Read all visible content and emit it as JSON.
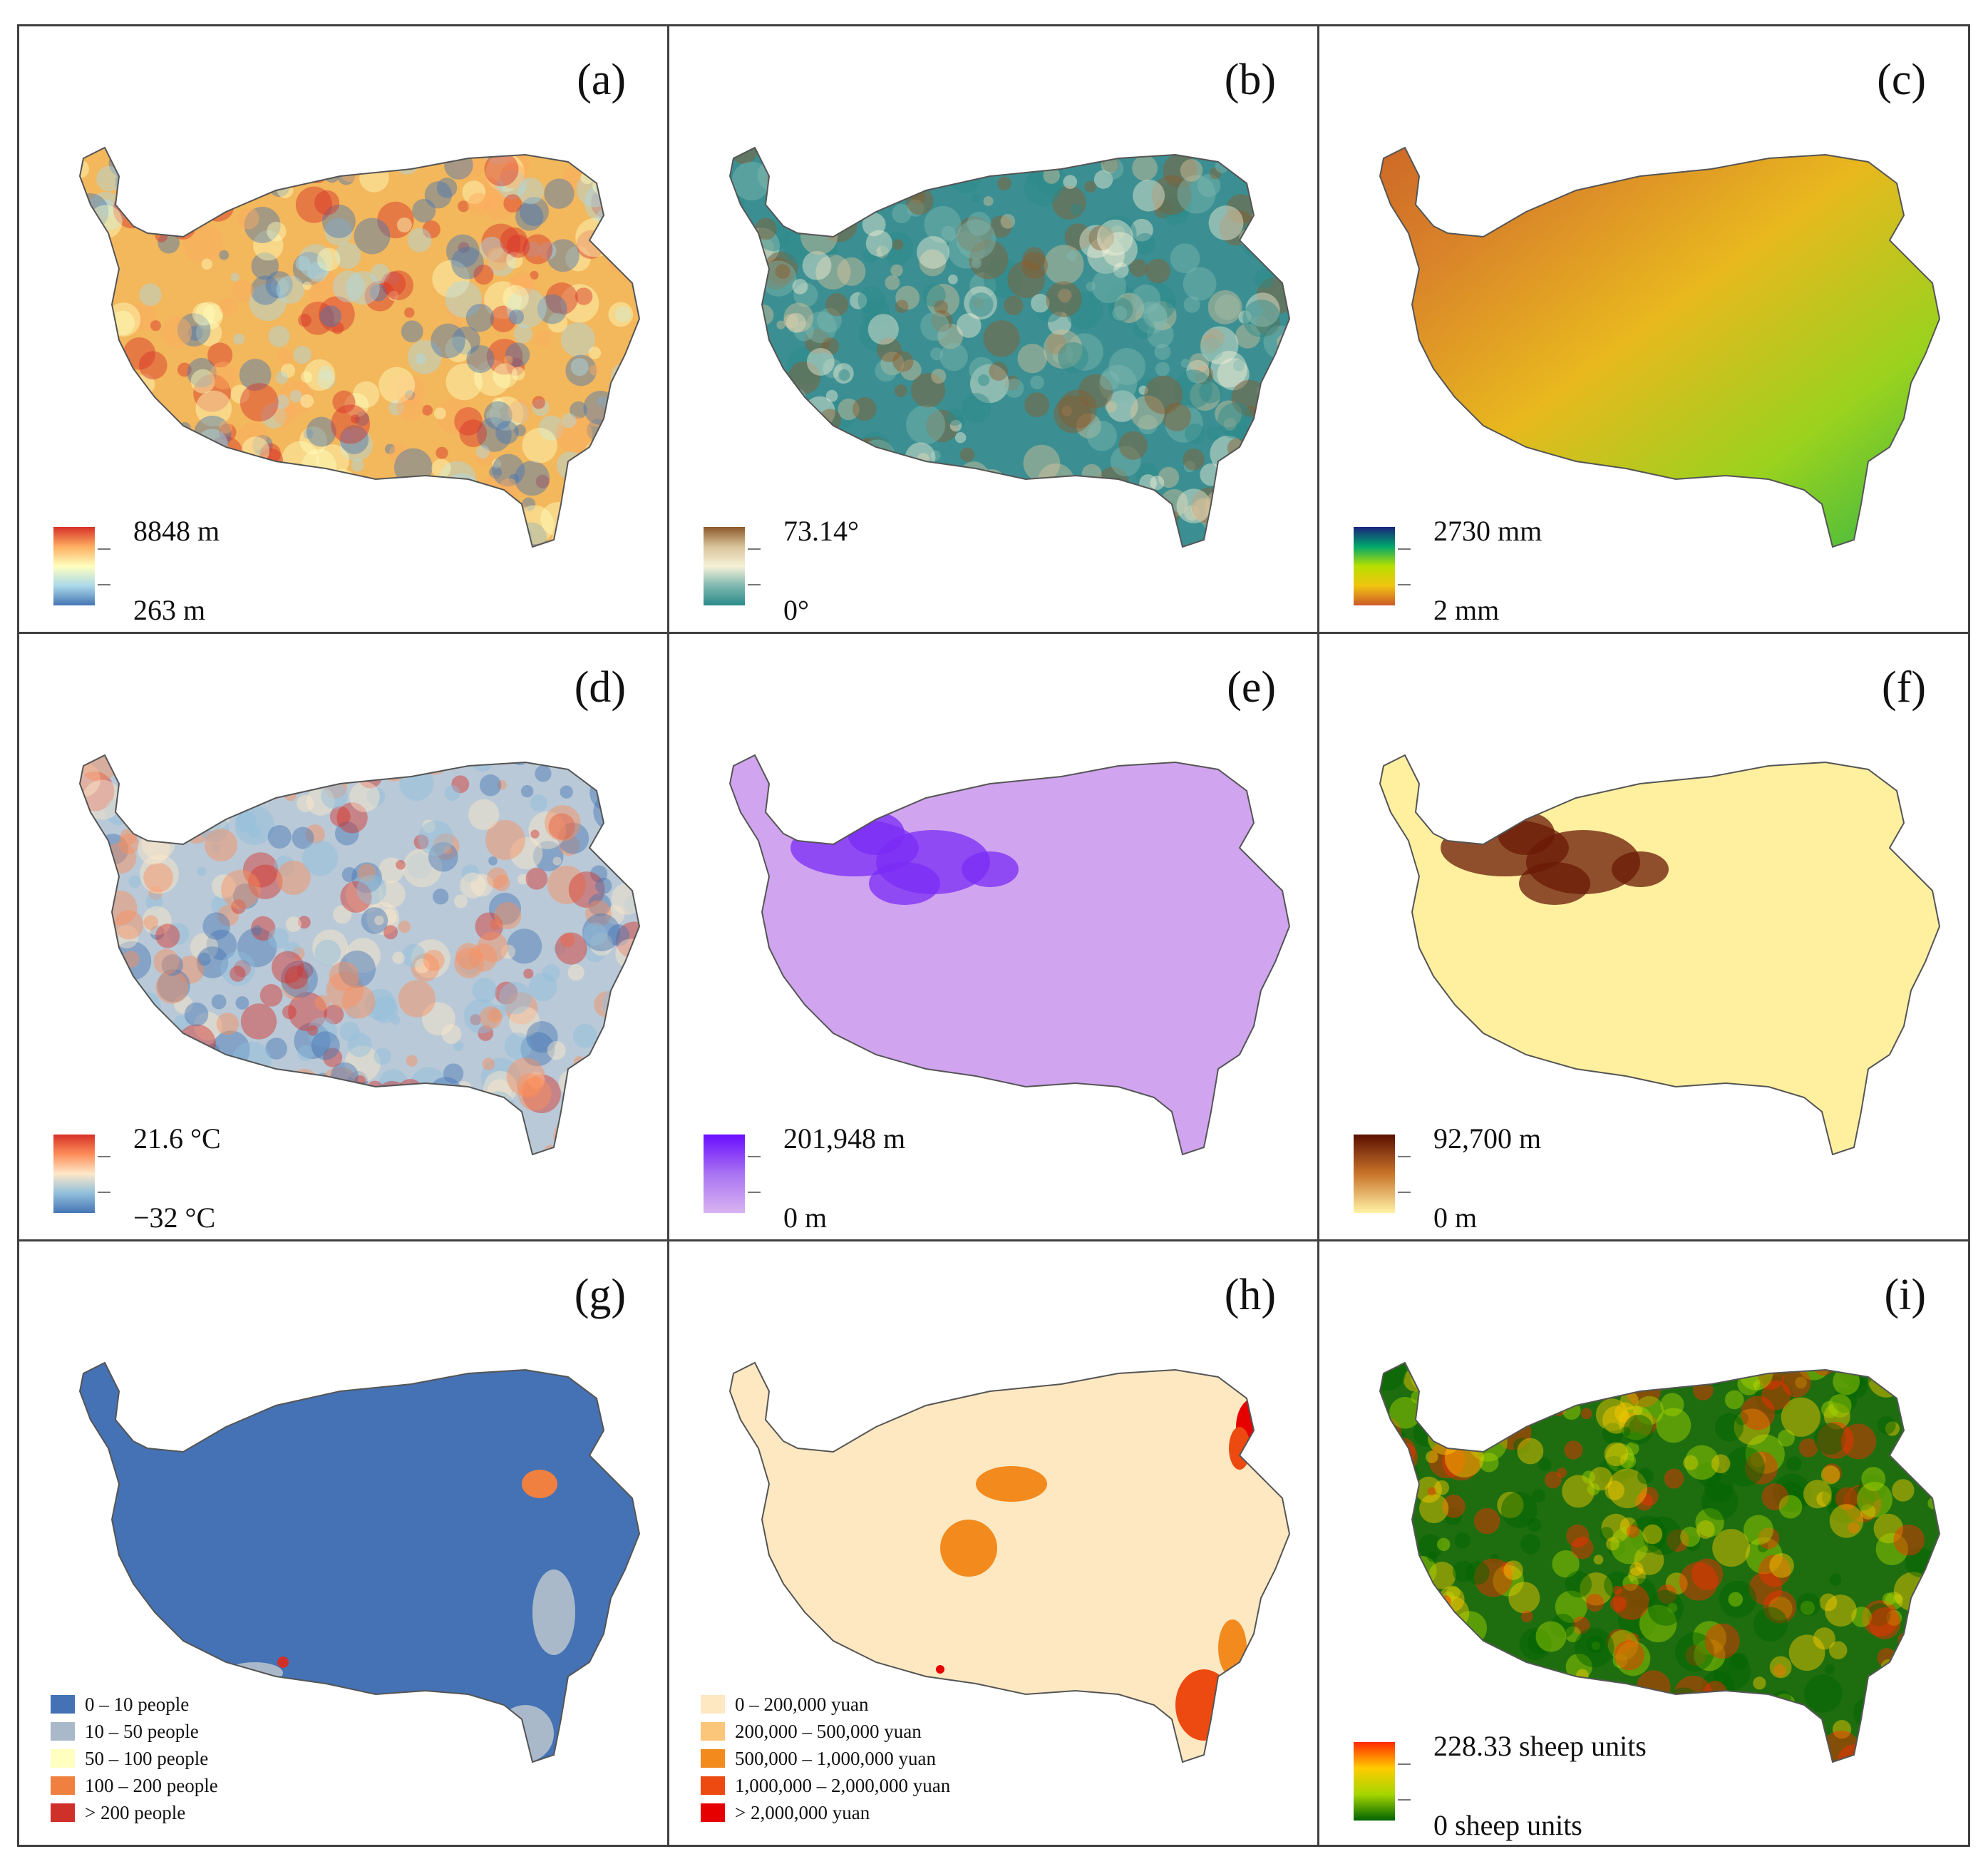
{
  "panels": [
    {
      "label": "(a)",
      "type": "continuous",
      "max": "8848 m",
      "min": "263 m",
      "ramp": [
        "#d73027",
        "#fdae61",
        "#ffffbf",
        "#abd9e9",
        "#4575b4"
      ],
      "pattern": "noise",
      "base": "#f3b75c"
    },
    {
      "label": "(b)",
      "type": "continuous",
      "max": "73.14°",
      "min": "0°",
      "ramp": [
        "#8c5a2b",
        "#d9c49a",
        "#f5f1d8",
        "#7fb8b0",
        "#2a8a8a"
      ],
      "pattern": "noise",
      "base": "#3b8f92"
    },
    {
      "label": "(c)",
      "type": "continuous",
      "max": "2730 mm",
      "min": "2 mm",
      "ramp": [
        "#1a237e",
        "#00a86b",
        "#b7e000",
        "#f1c40f",
        "#cc5a28"
      ],
      "pattern": "gradient",
      "base": "#d88a2a"
    },
    {
      "label": "(d)",
      "type": "continuous",
      "max": "21.6 °C",
      "min": "−32 °C",
      "ramp": [
        "#d73027",
        "#fc8d59",
        "#fee8c8",
        "#91bfdb",
        "#4575b4"
      ],
      "pattern": "noise",
      "base": "#b9c9d7"
    },
    {
      "label": "(e)",
      "type": "continuous",
      "max": "201,948 m",
      "min": "0 m",
      "ramp": [
        "#6a0dff",
        "#a973f2",
        "#d9b3f2"
      ],
      "pattern": "blob",
      "base": "#d0a4ef",
      "blob": "#7a2cf5"
    },
    {
      "label": "(f)",
      "type": "continuous",
      "max": "92,700 m",
      "min": "0 m",
      "ramp": [
        "#5a0f00",
        "#c9742a",
        "#fff2a6"
      ],
      "pattern": "blob",
      "base": "#fff0a0",
      "blob": "#6a1a05"
    },
    {
      "label": "(g)",
      "type": "classes",
      "base": "#4472b4",
      "classes": [
        {
          "label": "0 – 10 people",
          "color": "#4472b4"
        },
        {
          "label": "10 – 50 people",
          "color": "#a9b9c9"
        },
        {
          "label": "50 – 100 people",
          "color": "#ffffc0"
        },
        {
          "label": "100 – 200 people",
          "color": "#f08040"
        },
        {
          "label": "> 200 people",
          "color": "#d0302a"
        }
      ]
    },
    {
      "label": "(h)",
      "type": "classes",
      "base": "#fde8c2",
      "classes": [
        {
          "label": "0 – 200,000 yuan",
          "color": "#fde8c2"
        },
        {
          "label": "200,000 – 500,000 yuan",
          "color": "#fbc67a"
        },
        {
          "label": "500,000 – 1,000,000 yuan",
          "color": "#f28a1e"
        },
        {
          "label": "1,000,000 – 2,000,000 yuan",
          "color": "#ec4a10"
        },
        {
          "label": "> 2,000,000 yuan",
          "color": "#e60000"
        }
      ]
    },
    {
      "label": "(i)",
      "type": "continuous",
      "max": "228.33 sheep units",
      "min": "0  sheep units",
      "ramp": [
        "#ff2a00",
        "#ffcc00",
        "#a6d600",
        "#006400"
      ],
      "pattern": "noise",
      "base": "#1e6e10"
    }
  ]
}
